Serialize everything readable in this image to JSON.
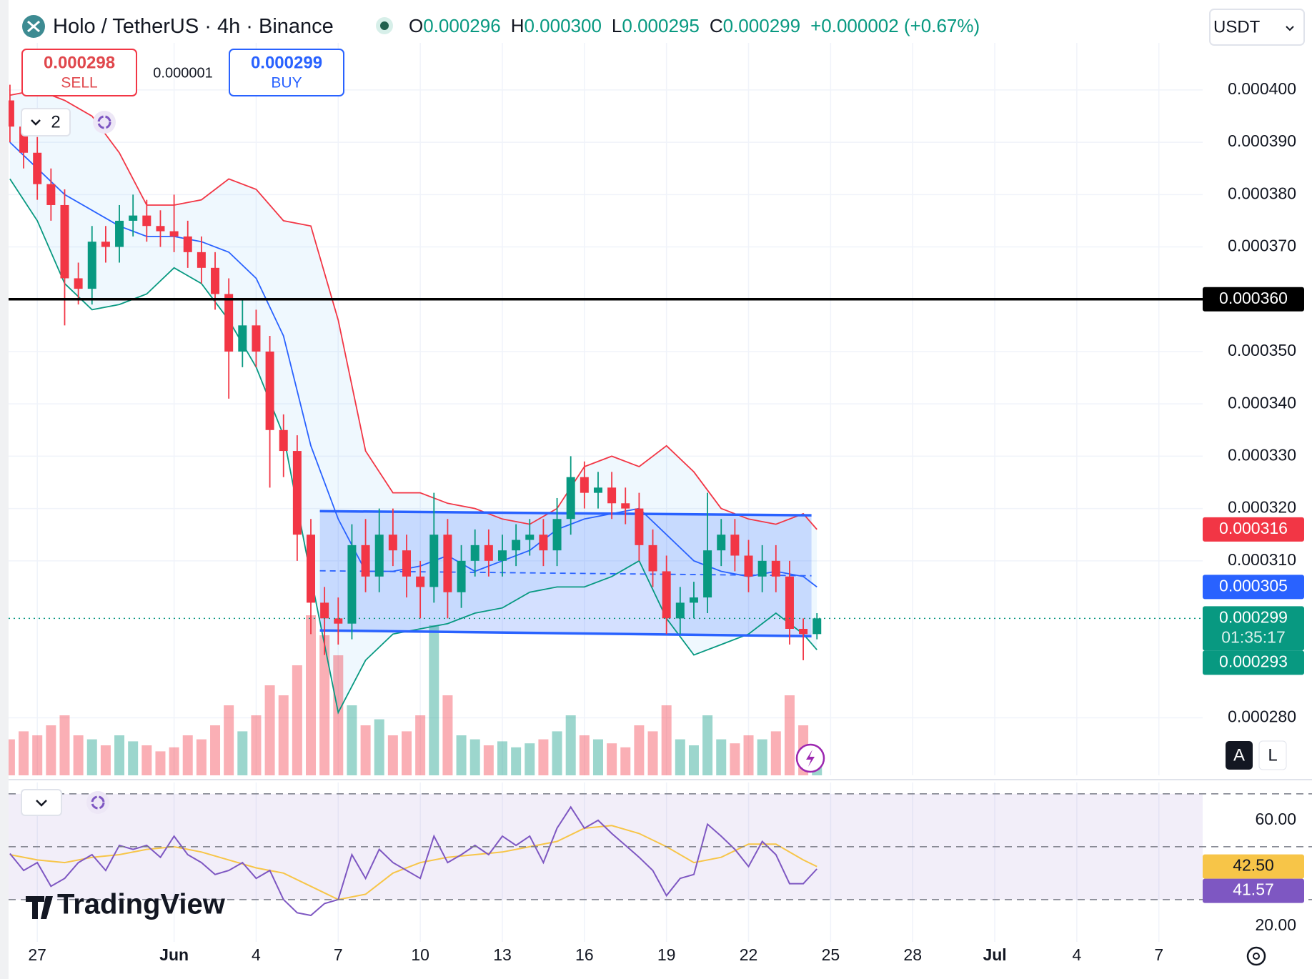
{
  "header": {
    "title": "Holo / TetherUS · 4h · Binance",
    "ohlc": [
      {
        "label": "O",
        "value": "0.000296"
      },
      {
        "label": "H",
        "value": "0.000300"
      },
      {
        "label": "L",
        "value": "0.000295"
      },
      {
        "label": "C",
        "value": "0.000299"
      }
    ],
    "change": "+0.000002 (+0.67%)",
    "currency": "USDT"
  },
  "trade": {
    "sell": {
      "price": "0.000298",
      "label": "SELL"
    },
    "spread": "0.000001",
    "buy": {
      "price": "0.000299",
      "label": "BUY"
    }
  },
  "indicators_count": "2",
  "scale_buttons": [
    "A",
    "L"
  ],
  "logo": "TradingView",
  "chart_data": [
    {
      "type": "candlestick",
      "x": [
        -6,
        -5.5,
        -5,
        -4.5,
        -4,
        -3.5,
        -3,
        -2.5,
        -2,
        -1.5,
        -1,
        -0.5,
        0,
        0.5,
        1,
        1.5,
        2,
        2.5,
        3,
        3.5,
        4,
        4.5,
        5,
        5.5,
        6,
        6.5,
        7,
        7.5,
        8,
        8.5,
        9,
        9.5,
        10,
        10.5,
        11,
        11.5,
        12,
        12.5,
        13,
        13.5,
        14,
        14.5,
        15,
        15.5,
        16,
        16.5,
        17,
        17.5,
        18,
        18.5,
        19,
        19.5,
        20,
        20.5,
        21,
        21.5,
        22,
        22.5,
        23,
        23.5
      ],
      "open": [
        0.000398,
        0.000393,
        0.000388,
        0.000382,
        0.000378,
        0.000364,
        0.000362,
        0.000371,
        0.00037,
        0.000375,
        0.000376,
        0.000374,
        0.000373,
        0.000372,
        0.000369,
        0.000366,
        0.000361,
        0.00035,
        0.000355,
        0.00035,
        0.000335,
        0.000331,
        0.000315,
        0.000302,
        0.000299,
        0.000298,
        0.000313,
        0.000307,
        0.000315,
        0.000312,
        0.000307,
        0.000305,
        0.000315,
        0.000304,
        0.00031,
        0.000313,
        0.00031,
        0.000312,
        0.000314,
        0.000315,
        0.000312,
        0.000318,
        0.000326,
        0.000323,
        0.000324,
        0.000321,
        0.00032,
        0.000313,
        0.000308,
        0.000299,
        0.000302,
        0.000303,
        0.000312,
        0.000315,
        0.000311,
        0.000307,
        0.00031,
        0.000307,
        0.000297,
        0.000296
      ],
      "high": [
        0.000401,
        0.000396,
        0.000391,
        0.000385,
        0.000381,
        0.000367,
        0.000374,
        0.000374,
        0.000378,
        0.00038,
        0.000379,
        0.000377,
        0.00038,
        0.000375,
        0.000372,
        0.000369,
        0.000364,
        0.00036,
        0.000358,
        0.000353,
        0.000338,
        0.000334,
        0.000318,
        0.000305,
        0.000303,
        0.000317,
        0.000318,
        0.00032,
        0.00032,
        0.000315,
        0.00031,
        0.000323,
        0.000318,
        0.000313,
        0.000316,
        0.000316,
        0.000315,
        0.000317,
        0.000318,
        0.000318,
        0.000322,
        0.00033,
        0.000329,
        0.000327,
        0.000327,
        0.000324,
        0.000323,
        0.000316,
        0.000311,
        0.000305,
        0.000306,
        0.000323,
        0.000318,
        0.000318,
        0.000314,
        0.000313,
        0.000313,
        0.00031,
        0.000299,
        0.0003
      ],
      "low": [
        0.00039,
        0.000385,
        0.000379,
        0.000375,
        0.000355,
        0.000359,
        0.000359,
        0.000367,
        0.000367,
        0.000372,
        0.000371,
        0.00037,
        0.000369,
        0.000366,
        0.000363,
        0.000358,
        0.000341,
        0.000347,
        0.000347,
        0.000324,
        0.000326,
        0.00031,
        0.000296,
        0.000292,
        0.000294,
        0.000295,
        0.000304,
        0.000304,
        0.000309,
        0.000303,
        0.000299,
        0.000302,
        0.000299,
        0.000301,
        0.000307,
        0.000307,
        0.000307,
        0.000309,
        0.000311,
        0.000309,
        0.000309,
        0.000315,
        0.00032,
        0.00032,
        0.000318,
        0.000317,
        0.00031,
        0.000305,
        0.000296,
        0.000296,
        0.000299,
        0.0003,
        0.000309,
        0.000308,
        0.000304,
        0.000304,
        0.000304,
        0.000294,
        0.000291,
        0.000295
      ],
      "close": [
        0.000393,
        0.000388,
        0.000382,
        0.000378,
        0.000364,
        0.000362,
        0.000371,
        0.00037,
        0.000375,
        0.000376,
        0.000374,
        0.000373,
        0.000372,
        0.000369,
        0.000366,
        0.000361,
        0.00035,
        0.000355,
        0.00035,
        0.000335,
        0.000331,
        0.000315,
        0.000302,
        0.000299,
        0.000298,
        0.000313,
        0.000307,
        0.000315,
        0.000312,
        0.000307,
        0.000305,
        0.000315,
        0.000304,
        0.00031,
        0.000313,
        0.00031,
        0.000312,
        0.000314,
        0.000315,
        0.000312,
        0.000318,
        0.000326,
        0.000323,
        0.000324,
        0.000321,
        0.00032,
        0.000313,
        0.000308,
        0.000299,
        0.000302,
        0.000303,
        0.000312,
        0.000315,
        0.000311,
        0.000307,
        0.00031,
        0.000307,
        0.000297,
        0.000296,
        0.000299
      ],
      "volume": [
        18,
        22,
        20,
        25,
        30,
        20,
        18,
        15,
        20,
        17,
        15,
        12,
        14,
        20,
        18,
        25,
        35,
        22,
        30,
        45,
        40,
        55,
        80,
        70,
        60,
        35,
        25,
        28,
        20,
        22,
        30,
        75,
        40,
        20,
        18,
        15,
        17,
        14,
        16,
        18,
        22,
        30,
        20,
        18,
        16,
        14,
        25,
        22,
        35,
        18,
        15,
        30,
        18,
        16,
        20,
        18,
        22,
        40,
        25,
        10
      ],
      "vlim": [
        0,
        100
      ],
      "up_color": "#089981",
      "down_color": "#f23645",
      "bands": {
        "x": [
          -6,
          -5,
          -4,
          -3,
          -2,
          -1,
          0,
          1,
          2,
          3,
          4,
          5,
          6,
          7,
          8,
          9,
          10,
          11,
          12,
          13,
          14,
          15,
          16,
          17,
          18,
          19,
          20,
          21,
          22,
          23,
          23.5
        ],
        "upper": [
          0.000399,
          0.0004,
          0.000398,
          0.000395,
          0.000388,
          0.000378,
          0.000378,
          0.000379,
          0.000383,
          0.000381,
          0.000375,
          0.000374,
          0.000356,
          0.000331,
          0.000323,
          0.000323,
          0.000321,
          0.00032,
          0.000318,
          0.000317,
          0.00032,
          0.000328,
          0.00033,
          0.000328,
          0.000332,
          0.000327,
          0.00032,
          0.000318,
          0.000317,
          0.000319,
          0.000316
        ],
        "middle": [
          0.00039,
          0.000385,
          0.00038,
          0.000377,
          0.000374,
          0.000372,
          0.000372,
          0.000371,
          0.000369,
          0.000364,
          0.000353,
          0.000332,
          0.000318,
          0.000308,
          0.000308,
          0.000309,
          0.000311,
          0.000308,
          0.00031,
          0.000312,
          0.000316,
          0.000318,
          0.000319,
          0.00032,
          0.000315,
          0.00031,
          0.000308,
          0.000307,
          0.000308,
          0.000307,
          0.000305
        ],
        "lower": [
          0.000383,
          0.000375,
          0.000363,
          0.000358,
          0.000359,
          0.000361,
          0.000366,
          0.000363,
          0.000356,
          0.000347,
          0.000334,
          0.000307,
          0.000281,
          0.000291,
          0.000296,
          0.000297,
          0.000298,
          0.0003,
          0.000301,
          0.000304,
          0.000305,
          0.000305,
          0.000307,
          0.00031,
          0.000299,
          0.000292,
          0.000294,
          0.000296,
          0.0003,
          0.000296,
          0.000293
        ],
        "upper_color": "#f23645",
        "middle_color": "#2962ff",
        "lower_color": "#089981"
      },
      "channel": {
        "x": [
          5.33,
          23.3
        ],
        "top": [
          0.0003195,
          0.0003187
        ],
        "bottom": [
          0.0002967,
          0.0002956
        ],
        "color": "#2962ff"
      },
      "hline": 0.00036,
      "last_price": 0.000299,
      "price_labels": [
        {
          "value": 0.00036,
          "label": "0.000360",
          "color": "#000000"
        },
        {
          "value": 0.000316,
          "label": "0.000316",
          "color": "#f23645"
        },
        {
          "value": 0.000305,
          "label": "0.000305",
          "color": "#2962ff"
        },
        {
          "value": 0.000299,
          "label": "0.000299",
          "color": "#089981",
          "countdown": "01:35:17"
        },
        {
          "value": 0.000293,
          "label": "0.000293",
          "color": "#089981"
        }
      ],
      "xlim": [
        -6.05,
        37.6
      ],
      "xticks": [
        {
          "value": -5,
          "label": "27"
        },
        {
          "value": 0,
          "label": "Jun"
        },
        {
          "value": 3,
          "label": "4"
        },
        {
          "value": 6,
          "label": "7"
        },
        {
          "value": 9,
          "label": "10"
        },
        {
          "value": 12,
          "label": "13"
        },
        {
          "value": 15,
          "label": "16"
        },
        {
          "value": 18,
          "label": "19"
        },
        {
          "value": 21,
          "label": "22"
        },
        {
          "value": 24,
          "label": "25"
        },
        {
          "value": 27,
          "label": "28"
        },
        {
          "value": 30,
          "label": "Jul"
        },
        {
          "value": 33,
          "label": "4"
        },
        {
          "value": 36,
          "label": "7"
        }
      ],
      "ylim": [
        0.000269,
        0.000409
      ],
      "yticks": [
        {
          "value": 0.00028,
          "label": "0.000280"
        },
        {
          "value": 0.00031,
          "label": "0.000310"
        },
        {
          "value": 0.00032,
          "label": "0.000320"
        },
        {
          "value": 0.00033,
          "label": "0.000330"
        },
        {
          "value": 0.00034,
          "label": "0.000340"
        },
        {
          "value": 0.00035,
          "label": "0.000350"
        },
        {
          "value": 0.00037,
          "label": "0.000370"
        },
        {
          "value": 0.00038,
          "label": "0.000380"
        },
        {
          "value": 0.00039,
          "label": "0.000390"
        },
        {
          "value": 0.0004,
          "label": "0.000400"
        }
      ],
      "grid": true
    },
    {
      "type": "line",
      "x": [
        -6,
        -5.5,
        -5,
        -4.5,
        -4,
        -3.5,
        -3,
        -2.5,
        -2,
        -1.5,
        -1,
        -0.5,
        0,
        0.5,
        1,
        1.5,
        2,
        2.5,
        3,
        3.5,
        4,
        4.5,
        5,
        5.5,
        6,
        6.5,
        7,
        7.5,
        8,
        8.5,
        9,
        9.5,
        10,
        10.5,
        11,
        11.5,
        12,
        12.5,
        13,
        13.5,
        14,
        14.5,
        15,
        15.5,
        16,
        16.5,
        17,
        17.5,
        18,
        18.5,
        19,
        19.5,
        20,
        20.5,
        21,
        21.5,
        22,
        22.5,
        23,
        23.5
      ],
      "values": [
        47.4,
        41,
        44,
        35,
        38,
        44,
        47,
        41,
        50.5,
        49,
        50.5,
        46,
        54,
        47,
        44,
        39.5,
        41,
        44,
        38,
        41,
        30,
        25,
        24,
        28.5,
        30,
        47,
        38,
        49,
        44,
        41,
        38,
        54,
        44,
        47,
        50.5,
        47,
        54,
        50.5,
        54,
        44,
        57,
        65,
        57,
        60,
        55,
        50.5,
        46,
        41,
        31.5,
        38,
        39.5,
        58.5,
        54,
        49,
        42.5,
        52,
        47,
        36,
        36,
        41.57
      ],
      "color": "#7e57c2",
      "ma": {
        "x": [
          -6,
          -5,
          -4,
          -3,
          -2,
          -1,
          0,
          1,
          2,
          3,
          4,
          5,
          6,
          7,
          8,
          9,
          10,
          11,
          12,
          13,
          14,
          15,
          16,
          17,
          18,
          19,
          20,
          21,
          22,
          23,
          23.5
        ],
        "values": [
          47,
          45,
          44,
          46,
          47,
          49,
          50,
          48,
          45,
          42,
          40,
          35,
          30,
          32,
          40,
          44,
          46,
          47,
          48,
          50,
          52,
          57,
          58,
          55,
          50,
          44,
          46,
          51,
          51,
          45,
          42.5
        ],
        "color": "#f7c548"
      },
      "levels": [
        70,
        50,
        30
      ],
      "badges": [
        {
          "value": 42.5,
          "label": "42.50",
          "color": "#f7c548",
          "text_color": "#131722"
        },
        {
          "value": 41.57,
          "label": "41.57",
          "color": "#7e57c2",
          "text_color": "#ffffff"
        }
      ],
      "xlim": [
        -6.05,
        37.6
      ],
      "ylim": [
        14,
        74.3
      ],
      "yticks": [
        {
          "value": 60,
          "label": "60.00"
        },
        {
          "value": 20,
          "label": "20.00"
        }
      ]
    }
  ]
}
